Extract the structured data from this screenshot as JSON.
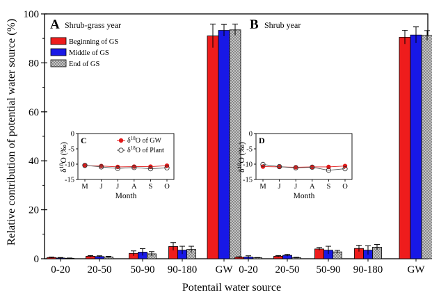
{
  "chart_data": {
    "type": "bar",
    "ylabel": "Relative contribution of potential water source (%)",
    "xlabel": "Potentail water source",
    "ylim": [
      0,
      100
    ],
    "yticks": [
      0,
      20,
      40,
      60,
      80,
      100
    ],
    "legend_position": "top-left",
    "categories": [
      "0-20",
      "20-50",
      "50-90",
      "90-180",
      "GW"
    ],
    "series_names": [
      "Beginning of GS",
      "Middle of GS",
      "End of GS"
    ],
    "series_colors": [
      "#ee1c1c",
      "#1818e6",
      "#cfcfcf"
    ],
    "panels": [
      {
        "letter": "A",
        "subtitle": "Shrub-grass year",
        "series": [
          {
            "name": "Beginning of GS",
            "values": [
              0.5,
              1.0,
              2.2,
              5.0,
              91.0
            ],
            "errors": [
              0.2,
              0.3,
              1.0,
              1.6,
              4.8
            ]
          },
          {
            "name": "Middle of GS",
            "values": [
              0.3,
              0.9,
              2.7,
              3.5,
              93.3
            ],
            "errors": [
              0.2,
              0.3,
              1.4,
              1.6,
              2.4
            ]
          },
          {
            "name": "End of GS",
            "values": [
              0.2,
              0.7,
              2.0,
              3.8,
              93.5
            ],
            "errors": [
              0.1,
              0.3,
              0.9,
              1.3,
              2.3
            ]
          }
        ]
      },
      {
        "letter": "B",
        "subtitle": "Shrub year",
        "series": [
          {
            "name": "Beginning of GS",
            "values": [
              0.6,
              1.0,
              4.0,
              4.2,
              90.5
            ],
            "errors": [
              0.2,
              0.3,
              0.6,
              1.3,
              2.8
            ]
          },
          {
            "name": "Middle of GS",
            "values": [
              0.7,
              1.4,
              3.5,
              3.5,
              91.4
            ],
            "errors": [
              0.5,
              0.4,
              1.6,
              1.8,
              3.3
            ]
          },
          {
            "name": "End of GS",
            "values": [
              0.4,
              0.4,
              2.8,
              4.7,
              91.2
            ],
            "errors": [
              0.1,
              0.2,
              0.6,
              1.1,
              2.0
            ]
          }
        ]
      }
    ],
    "insets": [
      {
        "letter": "C",
        "xlabel": "Month",
        "ylabel": "δ18O (‰)",
        "ylabel_main": "δ",
        "ylabel_sup": "18",
        "ylabel_rest": "O (‰)",
        "x": [
          "M",
          "J",
          "J",
          "A",
          "S",
          "O"
        ],
        "ylim": [
          -15,
          0
        ],
        "yticks": [
          "0",
          "-5",
          "-10",
          "-15"
        ],
        "ytick_values": [
          0,
          -5,
          -10,
          -15
        ],
        "legend": [
          {
            "pre": "δ",
            "sup": "18",
            "post": "O of GW"
          },
          {
            "pre": "δ",
            "sup": "18",
            "post": "O of Plant"
          }
        ],
        "series": [
          {
            "name": "δ18O of GW",
            "values": [
              -10.5,
              -10.6,
              -10.9,
              -10.8,
              -10.8,
              -10.5
            ]
          },
          {
            "name": "δ18O of Plant",
            "values": [
              -10.4,
              -10.9,
              -11.4,
              -11.1,
              -11.5,
              -11.2
            ]
          }
        ]
      },
      {
        "letter": "D",
        "xlabel": "Month",
        "ylabel_main": "δ",
        "ylabel_sup": "18",
        "ylabel_rest": "O (‰)",
        "x": [
          "M",
          "J",
          "J",
          "A",
          "S",
          "O"
        ],
        "ylim": [
          -15,
          0
        ],
        "yticks": [
          "0",
          "-5",
          "-10",
          "-15"
        ],
        "ytick_values": [
          0,
          -5,
          -10,
          -15
        ],
        "series": [
          {
            "name": "δ18O of GW",
            "values": [
              -10.8,
              -10.9,
              -11.0,
              -10.9,
              -10.9,
              -10.6
            ]
          },
          {
            "name": "δ18O of Plant",
            "values": [
              -10.1,
              -10.8,
              -11.2,
              -11.0,
              -12.0,
              -11.5
            ]
          }
        ]
      }
    ]
  }
}
